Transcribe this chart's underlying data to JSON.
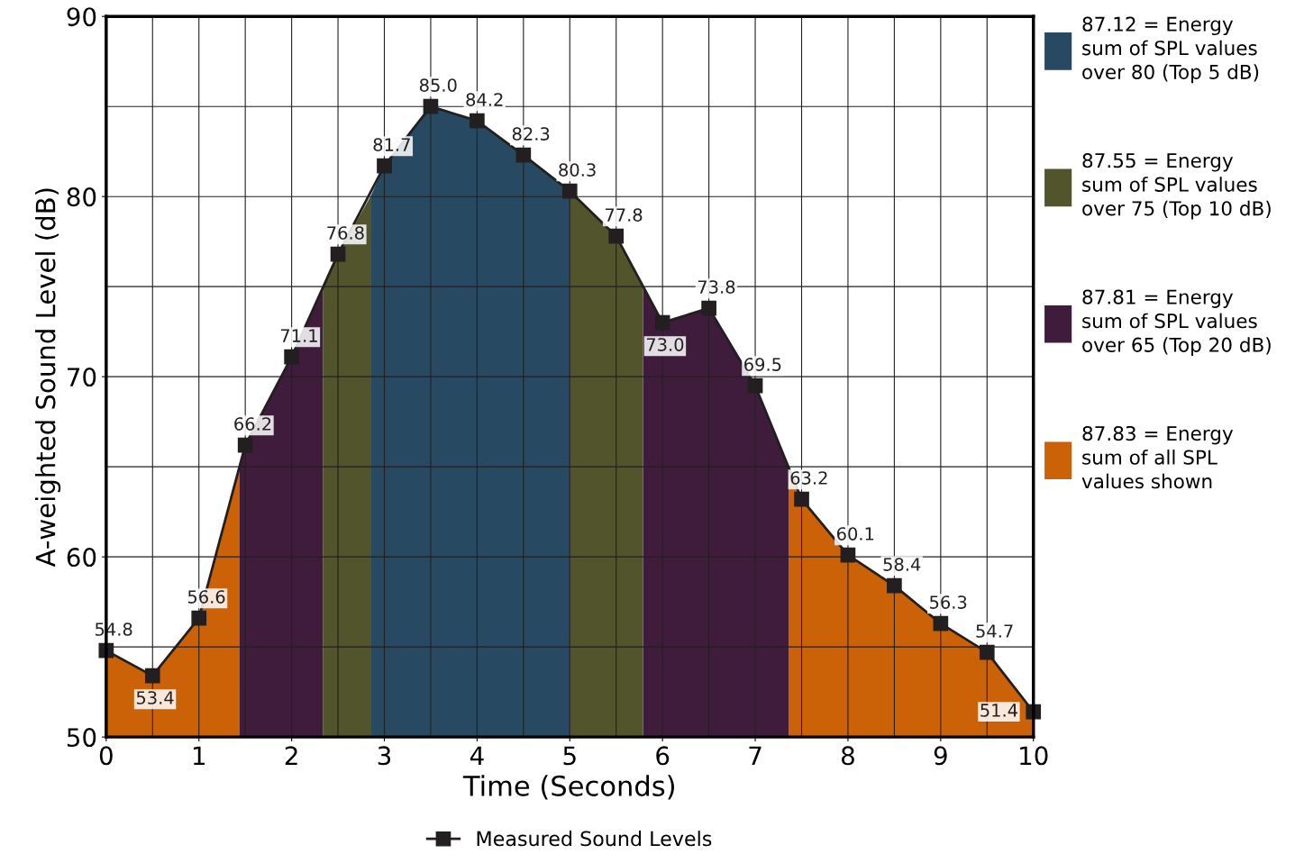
{
  "chart_data": {
    "type": "area",
    "xlabel": "Time (Seconds)",
    "ylabel": "A-weighted Sound Level (dB)",
    "x": [
      0,
      0.5,
      1,
      1.5,
      2,
      2.5,
      3,
      3.5,
      4,
      4.5,
      5,
      5.5,
      6,
      6.5,
      7,
      7.5,
      8,
      8.5,
      9,
      9.5,
      10
    ],
    "series": [
      {
        "name": "87.12 = Energy\nsum of SPL values\nover 80 (Top 5 dB)",
        "color": "#274a62",
        "x": [
          2.85,
          3,
          3.5,
          4,
          4.5,
          5
        ],
        "values": [
          80,
          81.7,
          85.0,
          84.2,
          82.3,
          80.3
        ]
      },
      {
        "name": "87.55 = Energy\nsum of SPL values\nover 75 (Top 10 dB)",
        "color": "#52542b",
        "x": [
          2.34,
          2.5,
          2.85,
          4,
          5,
          5.5,
          5.79
        ],
        "values": [
          75,
          76.8,
          80,
          null,
          80.3,
          77.8,
          75
        ]
      },
      {
        "name": "87.81 = Energy\nsum of SPL values\nover 65 (Top 20 dB)",
        "color": "#3f1c3c",
        "x": [
          1.44,
          1.5,
          2,
          2.34,
          4,
          5.79,
          6,
          6.5,
          7,
          7.36
        ],
        "values": [
          65,
          66.2,
          71.1,
          75,
          null,
          75,
          73.0,
          73.8,
          69.5,
          65
        ]
      },
      {
        "name": "87.83 = Energy\nsum of all SPL\nvalues shown",
        "color": "#cc6207",
        "x": [
          0,
          0.5,
          1,
          1.44,
          4,
          7.36,
          7.5,
          8,
          8.5,
          9,
          9.5,
          10
        ],
        "values": [
          54.8,
          53.4,
          56.6,
          65,
          null,
          65,
          63.2,
          60.1,
          58.4,
          56.3,
          54.7,
          51.4
        ]
      },
      {
        "name": "Measured Sound Levels",
        "type": "line",
        "marker": "square",
        "color": "#231f20",
        "values": [
          54.8,
          53.4,
          56.6,
          66.2,
          71.1,
          76.8,
          81.7,
          85.0,
          84.2,
          82.3,
          80.3,
          77.8,
          73.0,
          73.8,
          69.5,
          63.2,
          60.1,
          58.4,
          56.3,
          54.7,
          51.4
        ],
        "value_labels": [
          "54.8",
          "53.4",
          "56.6",
          "66.2",
          "71.1",
          "76.8",
          "81.7",
          "85.0",
          "84.2",
          "82.3",
          "80.3",
          "77.8",
          "73.0",
          "73.8",
          "69.5",
          "63.2",
          "60.1",
          "58.4",
          "56.3",
          "54.7",
          "51.4"
        ]
      }
    ],
    "line_style": "solid",
    "xlim": [
      0,
      10
    ],
    "xticks": [
      0,
      1,
      2,
      3,
      4,
      5,
      6,
      7,
      8,
      9,
      10
    ],
    "ylim": [
      50,
      90
    ],
    "yticks": [
      50,
      60,
      70,
      80,
      90
    ],
    "grid": true,
    "legend": "bottom"
  }
}
